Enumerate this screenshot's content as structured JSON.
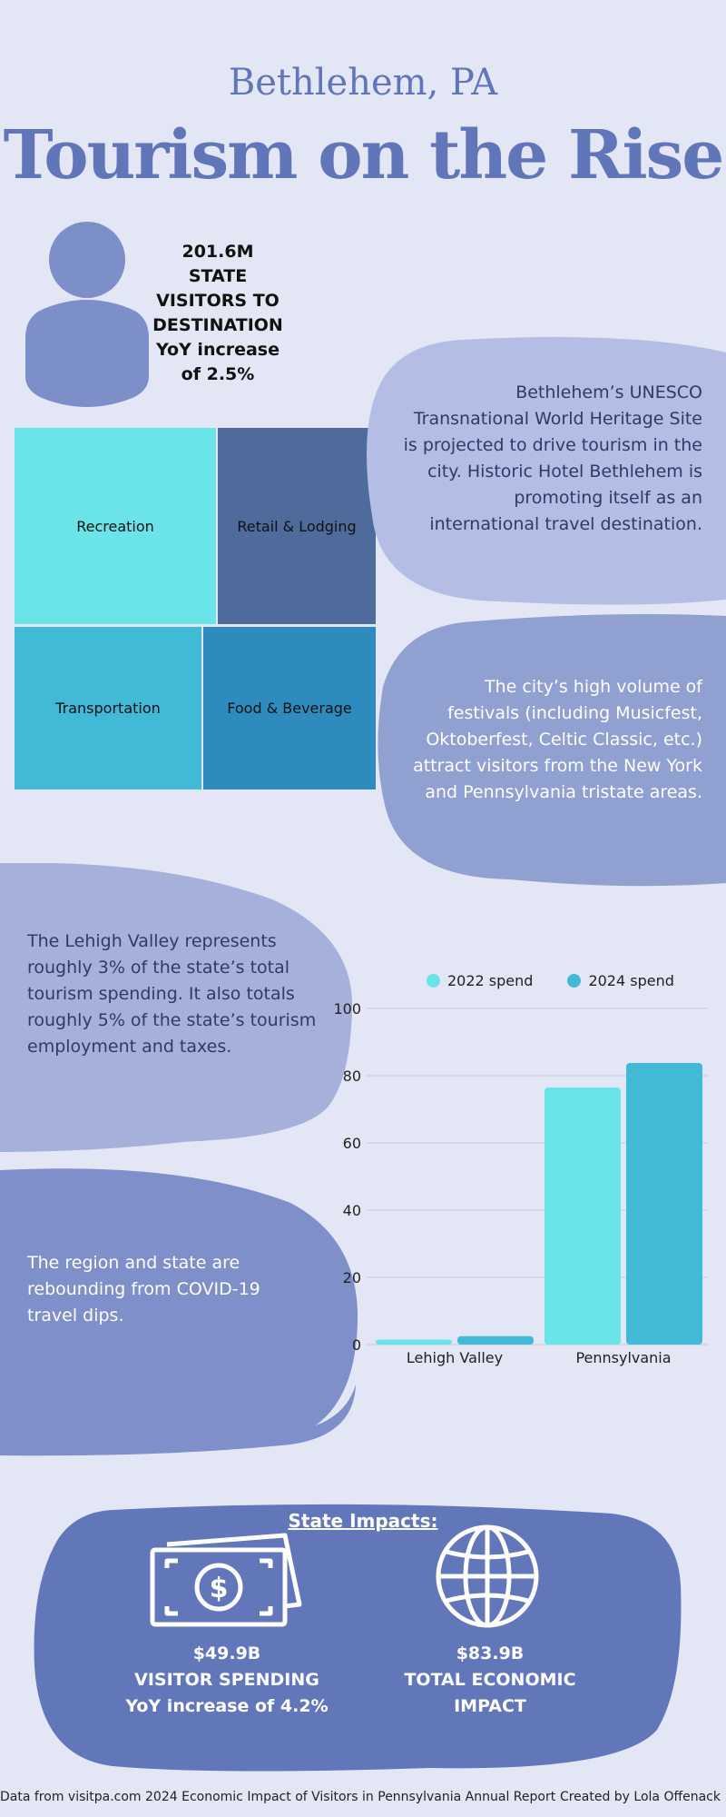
{
  "header": {
    "subtitle": "Bethlehem, PA",
    "title": "Tourism on the Rise"
  },
  "visitor_stat": {
    "lines": [
      "201.6M",
      "STATE",
      "VISITORS TO",
      "DESTINATION",
      "YoY increase",
      "of 2.5%"
    ]
  },
  "treemap": {
    "tiles": [
      {
        "label": "Recreation",
        "color": "#6ae4e8"
      },
      {
        "label": "Retail & Lodging",
        "color": "#4f6b9c"
      },
      {
        "label": "Transportation",
        "color": "#42b9d6"
      },
      {
        "label": "Food & Beverage",
        "color": "#2e8bbd"
      }
    ]
  },
  "callouts": {
    "unesco": "Bethlehem’s UNESCO Transnational World Heritage Site is projected to drive tourism in the city. Historic Hotel Bethlehem is promoting itself as an international travel destination.",
    "festivals": "The city’s high volume of festivals (including Musicfest, Oktoberfest, Celtic Classic, etc.) attract visitors from the New York and Pennsylvania tristate areas.",
    "lehigh": "The Lehigh Valley represents roughly 3% of the state’s  total tourism spending. It also totals roughly 5% of the state’s tourism employment and taxes.",
    "covid": "The region and state are rebounding from COVID-19 travel dips."
  },
  "chart_data": {
    "type": "bar",
    "categories": [
      "Lehigh Valley",
      "Pennsylvania"
    ],
    "series": [
      {
        "name": "2022 spend",
        "values": [
          1.5,
          76.5
        ],
        "color": "#6ae4e8"
      },
      {
        "name": "2024 spend",
        "values": [
          2.5,
          83.8
        ],
        "color": "#42b9d6"
      }
    ],
    "ylim": [
      0,
      100
    ],
    "yticks": [
      0,
      20,
      40,
      60,
      80,
      100
    ],
    "title": "",
    "xlabel": "",
    "ylabel": "",
    "grid": true,
    "legend": "top"
  },
  "impacts": {
    "heading": "State Impacts:",
    "spending": {
      "amount": "$49.9B",
      "label": "VISITOR SPENDING",
      "change": "YoY increase of 4.2%",
      "icon": "dollar-bill-icon"
    },
    "economic": {
      "amount": "$83.9B",
      "label1": "TOTAL ECONOMIC",
      "label2": "IMPACT",
      "icon": "globe-icon"
    }
  },
  "footer": {
    "source": "Data from visitpa.com 2024 Economic Impact of Visitors in Pennsylvania Annual Report",
    "credit": "Created by Lola Offenack"
  }
}
